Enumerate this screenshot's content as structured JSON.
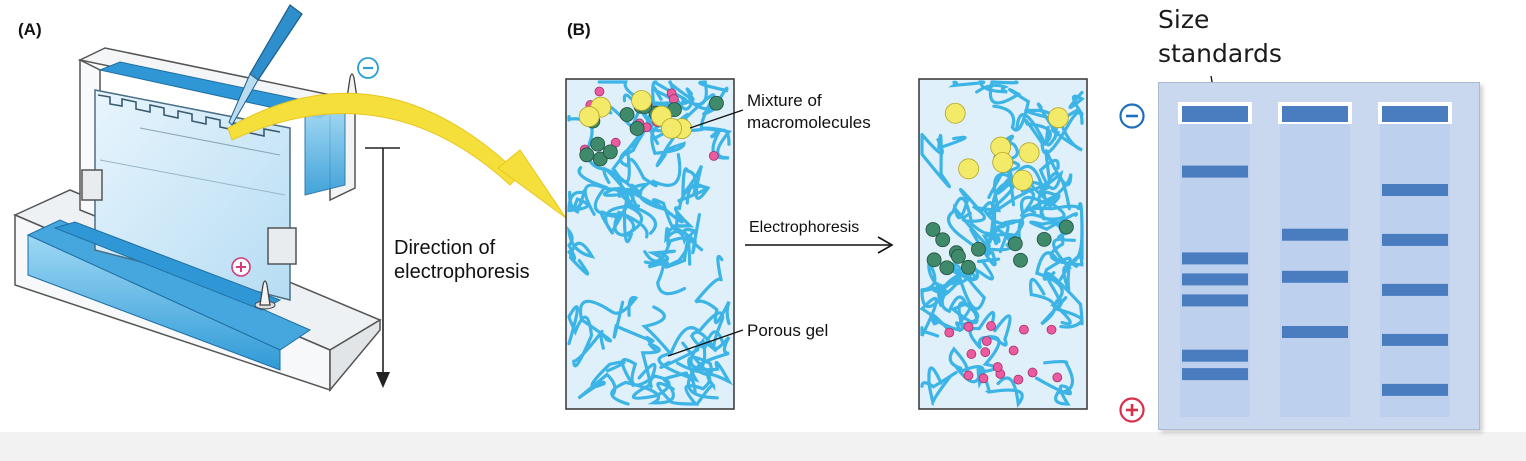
{
  "panel_a": {
    "letter": "(A)",
    "direction_label_line1": "Direction of",
    "direction_label_line2": "electrophoresis",
    "minus_sign": "−",
    "plus_sign": "+"
  },
  "panel_b": {
    "letter": "(B)",
    "mixture_label_line1": "Mixture of",
    "mixture_label_line2": "macromolecules",
    "arrow_label": "Electrophoresis",
    "gel_label": "Porous gel"
  },
  "panel_c": {
    "size_standards_line1": "Size",
    "size_standards_line2": "standards",
    "minus_sign": "−",
    "plus_sign": "+"
  },
  "colors": {
    "gel_blue": "#4aa8d8",
    "fiber_blue": "#3cb4e6",
    "gel_bg": "#dff0fa",
    "band_blue": "#4a7cc0",
    "lane_bg": "#bdd0ee",
    "plate_bg": "#c9d7ef",
    "yellow_arrow": "#f5df3a",
    "molecule_yellow": "#f3ea6a",
    "molecule_green": "#3f8a6a",
    "molecule_pink": "#ec5aa0",
    "minus_color": "#1f6fbf",
    "plus_color": "#d8304a"
  },
  "lanes": [
    {
      "bands": [
        0.0,
        0.12,
        0.45,
        0.53,
        0.61,
        0.82,
        0.89
      ]
    },
    {
      "bands": [
        0.0,
        0.36,
        0.52,
        0.73
      ]
    },
    {
      "bands": [
        0.0,
        0.19,
        0.38,
        0.57,
        0.76,
        0.95
      ]
    }
  ]
}
